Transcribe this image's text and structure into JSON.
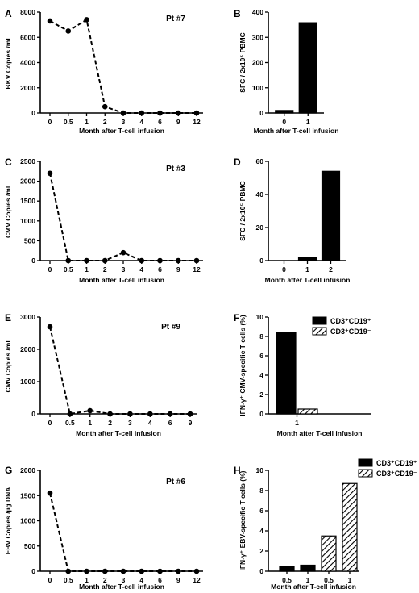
{
  "hatch_color": "#000000",
  "chart_data": [
    {
      "panel": "A",
      "type": "line",
      "annotation": "Pt #7",
      "xlabel": "Month after T-cell infusion",
      "ylabel": "BKV Copies /mL",
      "categories": [
        "0",
        "0.5",
        "1",
        "2",
        "3",
        "4",
        "6",
        "9",
        "12"
      ],
      "values": [
        7300,
        6500,
        7400,
        500,
        0,
        0,
        0,
        0,
        0
      ],
      "ylim": [
        0,
        8000
      ],
      "yticks": [
        0,
        2000,
        4000,
        6000,
        8000
      ]
    },
    {
      "panel": "B",
      "type": "bar",
      "xlabel": "Month after T-cell infusion",
      "ylabel": "SFC / 2x10⁵ PBMC",
      "categories": [
        "0",
        "1"
      ],
      "values": [
        10,
        358
      ],
      "ylim": [
        0,
        400
      ],
      "yticks": [
        0,
        100,
        200,
        300,
        400
      ]
    },
    {
      "panel": "C",
      "type": "line",
      "annotation": "Pt #3",
      "xlabel": "Month after T-cell infusion",
      "ylabel": "CMV Copies /mL",
      "categories": [
        "0",
        "0.5",
        "1",
        "2",
        "3",
        "4",
        "6",
        "9",
        "12"
      ],
      "values": [
        2200,
        0,
        0,
        0,
        200,
        0,
        0,
        0,
        0
      ],
      "ylim": [
        0,
        2500
      ],
      "yticks": [
        0,
        500,
        1000,
        1500,
        2000,
        2500
      ]
    },
    {
      "panel": "D",
      "type": "bar",
      "xlabel": "Month after T-cell infusion",
      "ylabel": "SFC / 2x10⁵ PBMC",
      "categories": [
        "0",
        "1",
        "2"
      ],
      "values": [
        0,
        2,
        54
      ],
      "ylim": [
        0,
        60
      ],
      "yticks": [
        0,
        20,
        40,
        60
      ]
    },
    {
      "panel": "E",
      "type": "line",
      "annotation": "Pt #9",
      "xlabel": "Month after T-cell infusion",
      "ylabel": "CMV Copies /mL",
      "categories": [
        "0",
        "0.5",
        "1",
        "2",
        "3",
        "4",
        "6",
        "9"
      ],
      "values": [
        2700,
        0,
        100,
        0,
        0,
        0,
        0,
        0
      ],
      "ylim": [
        0,
        3000
      ],
      "yticks": [
        0,
        1000,
        2000,
        3000
      ]
    },
    {
      "panel": "F",
      "type": "bar",
      "xlabel": "Month after T-cell infusion",
      "ylabel": "IFN-γ⁺ CMV-specific T cells  (%)",
      "categories": [
        "1"
      ],
      "series": [
        {
          "name": "CD3⁺CD19⁺",
          "values": [
            8.4
          ],
          "fill": "solid"
        },
        {
          "name": "CD3⁺CD19⁻",
          "values": [
            0.5
          ],
          "fill": "hatched"
        }
      ],
      "ylim": [
        0,
        10
      ],
      "yticks": [
        0,
        2,
        4,
        6,
        8,
        10
      ]
    },
    {
      "panel": "G",
      "type": "line",
      "annotation": "Pt #6",
      "xlabel": "Month after T-cell infusion",
      "ylabel": "EBV Copies /µg DNA",
      "categories": [
        "0",
        "0.5",
        "1",
        "2",
        "3",
        "4",
        "6",
        "9",
        "12"
      ],
      "values": [
        1550,
        0,
        0,
        0,
        0,
        0,
        0,
        0,
        0
      ],
      "ylim": [
        0,
        2000
      ],
      "yticks": [
        0,
        500,
        1000,
        1500,
        2000
      ]
    },
    {
      "panel": "H",
      "type": "bar",
      "xlabel": "Month after T-cell infusion",
      "ylabel": "IFN-γ⁺ EBV-specific T cells  (%)",
      "categories": [
        "0.5",
        "1",
        "0.5",
        "1"
      ],
      "series": [
        {
          "name": "CD3⁺CD19⁺",
          "values": [
            0.5,
            0.6,
            null,
            null
          ],
          "fill": "solid"
        },
        {
          "name": "CD3⁺CD19⁻",
          "values": [
            null,
            null,
            3.5,
            8.7
          ],
          "fill": "hatched"
        }
      ],
      "ylim": [
        0,
        10
      ],
      "yticks": [
        0,
        2,
        4,
        6,
        8,
        10
      ]
    }
  ]
}
